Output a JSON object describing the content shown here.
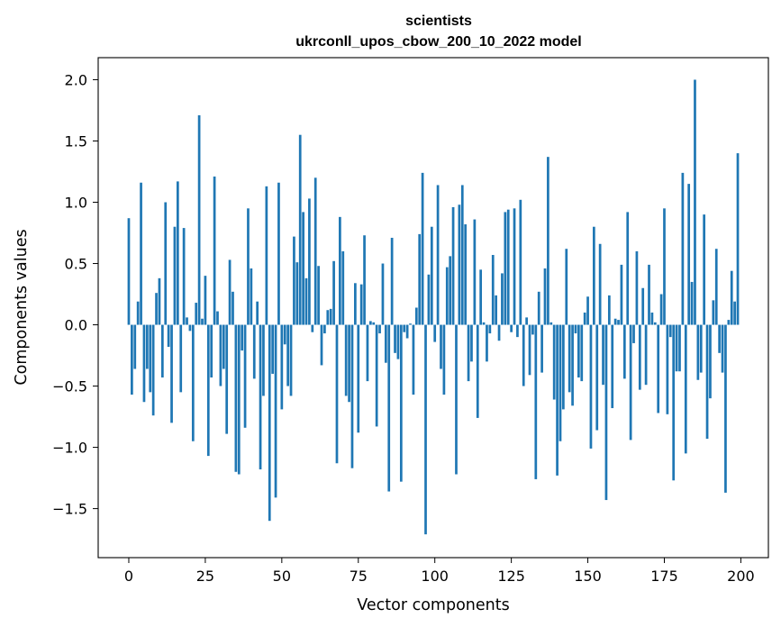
{
  "chart_data": {
    "type": "bar",
    "title": "scientists",
    "subtitle": "ukrconll_upos_cbow_200_10_2022 model",
    "xlabel": "Vector components",
    "ylabel": "Components values",
    "xlim": [
      -10,
      209
    ],
    "ylim": [
      -1.9,
      2.18
    ],
    "xticks": [
      0,
      25,
      50,
      75,
      100,
      125,
      150,
      175,
      200
    ],
    "yticks": [
      -1.5,
      -1.0,
      -0.5,
      0.0,
      0.5,
      1.0,
      1.5,
      2.0
    ],
    "ytick_labels": [
      "−1.5",
      "−1.0",
      "−0.5",
      "0.0",
      "0.5",
      "1.0",
      "1.5",
      "2.0"
    ],
    "bar_color": "#1f77b4",
    "grid": false,
    "legend": "none",
    "values": [
      0.87,
      -0.57,
      -0.36,
      0.19,
      1.16,
      -0.63,
      -0.36,
      -0.55,
      -0.74,
      0.26,
      0.38,
      -0.43,
      1.0,
      -0.18,
      -0.8,
      0.8,
      1.17,
      -0.55,
      0.79,
      0.06,
      -0.05,
      -0.95,
      0.18,
      1.71,
      0.05,
      0.4,
      -1.07,
      -0.43,
      1.21,
      0.11,
      -0.5,
      -0.36,
      -0.89,
      0.53,
      0.27,
      -1.2,
      -1.22,
      -0.21,
      -0.84,
      0.95,
      0.46,
      -0.44,
      0.19,
      -1.18,
      -0.58,
      1.13,
      -1.6,
      -0.4,
      -1.41,
      1.16,
      -0.69,
      -0.16,
      -0.5,
      -0.58,
      0.72,
      0.51,
      1.55,
      0.92,
      0.38,
      1.03,
      -0.06,
      1.2,
      0.48,
      -0.33,
      -0.07,
      0.12,
      0.13,
      0.52,
      -1.13,
      0.88,
      0.6,
      -0.58,
      -0.63,
      -1.17,
      0.34,
      -0.88,
      0.33,
      0.73,
      -0.46,
      0.03,
      0.02,
      -0.83,
      -0.07,
      0.5,
      -0.31,
      -1.36,
      0.71,
      -0.23,
      -0.28,
      -1.28,
      -0.06,
      -0.11,
      0.01,
      -0.57,
      0.14,
      0.74,
      1.24,
      -1.71,
      0.41,
      0.8,
      -0.14,
      1.14,
      -0.36,
      -0.57,
      0.47,
      0.56,
      0.96,
      -1.22,
      0.98,
      1.14,
      0.82,
      -0.46,
      -0.3,
      0.86,
      -0.76,
      0.45,
      0.02,
      -0.3,
      -0.07,
      0.57,
      0.24,
      -0.13,
      0.42,
      0.92,
      0.94,
      -0.06,
      0.95,
      -0.1,
      1.02,
      -0.5,
      0.06,
      -0.41,
      -0.08,
      -1.26,
      0.27,
      -0.39,
      0.46,
      1.37,
      0.02,
      -0.61,
      -1.23,
      -0.95,
      -0.69,
      0.62,
      -0.55,
      -0.66,
      -0.07,
      -0.43,
      -0.46,
      0.1,
      0.23,
      -1.01,
      0.8,
      -0.86,
      0.66,
      -0.49,
      -1.43,
      0.24,
      -0.68,
      0.05,
      0.04,
      0.49,
      -0.44,
      0.92,
      -0.94,
      -0.15,
      0.6,
      -0.53,
      0.3,
      -0.49,
      0.49,
      0.1,
      0.02,
      -0.72,
      0.25,
      0.95,
      -0.73,
      -0.1,
      -1.27,
      -0.38,
      -0.38,
      1.24,
      -1.05,
      1.15,
      0.35,
      2.0,
      -0.45,
      -0.39,
      0.9,
      -0.93,
      -0.6,
      0.2,
      0.62,
      -0.23,
      -0.39,
      -1.37,
      0.04,
      0.44,
      0.19,
      1.4
    ]
  }
}
